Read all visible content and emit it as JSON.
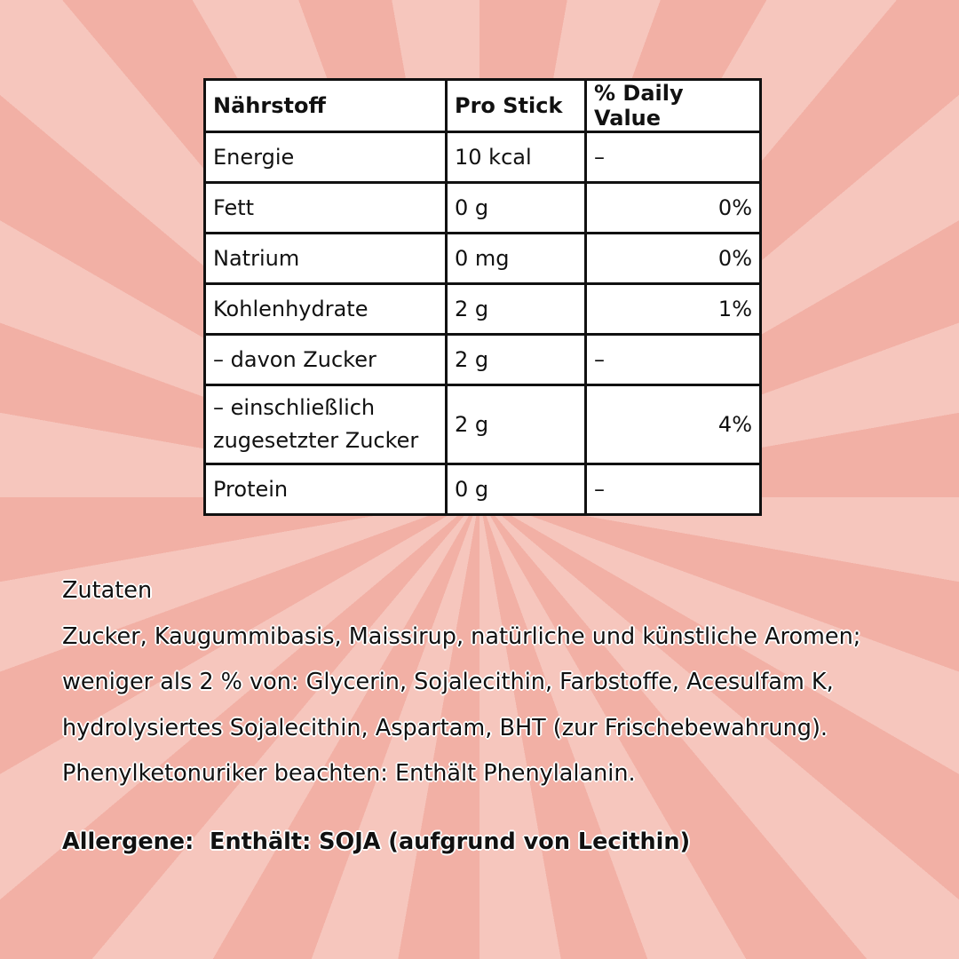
{
  "table": {
    "headers": [
      "Nährstoff",
      "Pro Stick",
      "% Daily Value"
    ],
    "rows": [
      {
        "name": "Energie",
        "amount": "10 kcal",
        "dv": "–"
      },
      {
        "name": "Fett",
        "amount": "0 g",
        "dv": "0%"
      },
      {
        "name": "Natrium",
        "amount": "0 mg",
        "dv": "0%"
      },
      {
        "name": "Kohlenhydrate",
        "amount": "2 g",
        "dv": "1%"
      },
      {
        "name": "– davon Zucker",
        "amount": "2 g",
        "dv": "–"
      },
      {
        "name": "– einschließlich zugesetzter Zucker",
        "amount": "2 g",
        "dv": "4%"
      },
      {
        "name": "Protein",
        "amount": "0 g",
        "dv": "–"
      }
    ]
  },
  "ingredients": {
    "heading": "Zutaten",
    "text": "Zucker, Kaugummibasis, Maissirup, natürliche und künstliche Aromen; weniger als 2 % von: Glycerin, Sojalecithin, Farbstoffe, Acesulfam K, hydrolysiertes Sojalecithin, Aspartam, BHT (zur Frischebewahrung).",
    "warning": "Phenylketonuriker beachten: Enthält Phenylalanin.",
    "allergens": "Allergene:  Enthält: SOJA (aufgrund von Lecithin)"
  },
  "colors": {
    "background_light": "#f6c6bd",
    "background_dark": "#f2b0a5"
  }
}
